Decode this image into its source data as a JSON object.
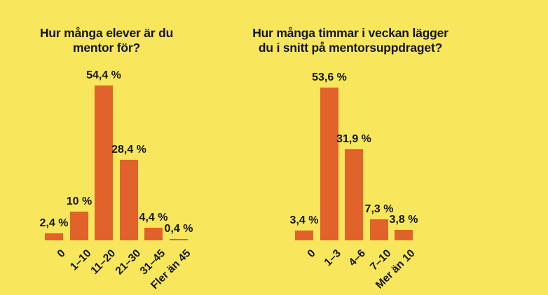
{
  "colors": {
    "background": "#F8E75C",
    "bar": "#E2622B",
    "text": "#141414"
  },
  "chart_data": [
    {
      "type": "bar",
      "title": "Hur många elever är du mentor för?",
      "title_lines": [
        "Hur många elever är du",
        "mentor för?"
      ],
      "categories": [
        "0",
        "1–10",
        "11–20",
        "21–30",
        "31–45",
        "Fler än 45"
      ],
      "values": [
        2.4,
        10,
        54.4,
        28.4,
        4.4,
        0.4
      ],
      "value_labels": [
        "2,4 %",
        "10 %",
        "54,4 %",
        "28,4 %",
        "4,4 %",
        "0,4 %"
      ],
      "xlabel": "",
      "ylabel": "",
      "ylim": [
        0,
        60
      ],
      "grid": false,
      "legend": false,
      "bar_color": "#E2622B"
    },
    {
      "type": "bar",
      "title": "Hur många timmar i veckan lägger du i snitt på mentorsuppdraget?",
      "title_lines": [
        "Hur många timmar i veckan lägger",
        "du i snitt på mentorsuppdraget?"
      ],
      "categories": [
        "0",
        "1–3",
        "4–6",
        "7–10",
        "Mer än 10"
      ],
      "values": [
        3.4,
        53.6,
        31.9,
        7.3,
        3.8
      ],
      "value_labels": [
        "3,4 %",
        "53,6 %",
        "31,9 %",
        "7,3 %",
        "3,8 %"
      ],
      "xlabel": "",
      "ylabel": "",
      "ylim": [
        0,
        60
      ],
      "grid": false,
      "legend": false,
      "bar_color": "#E2622B"
    }
  ]
}
